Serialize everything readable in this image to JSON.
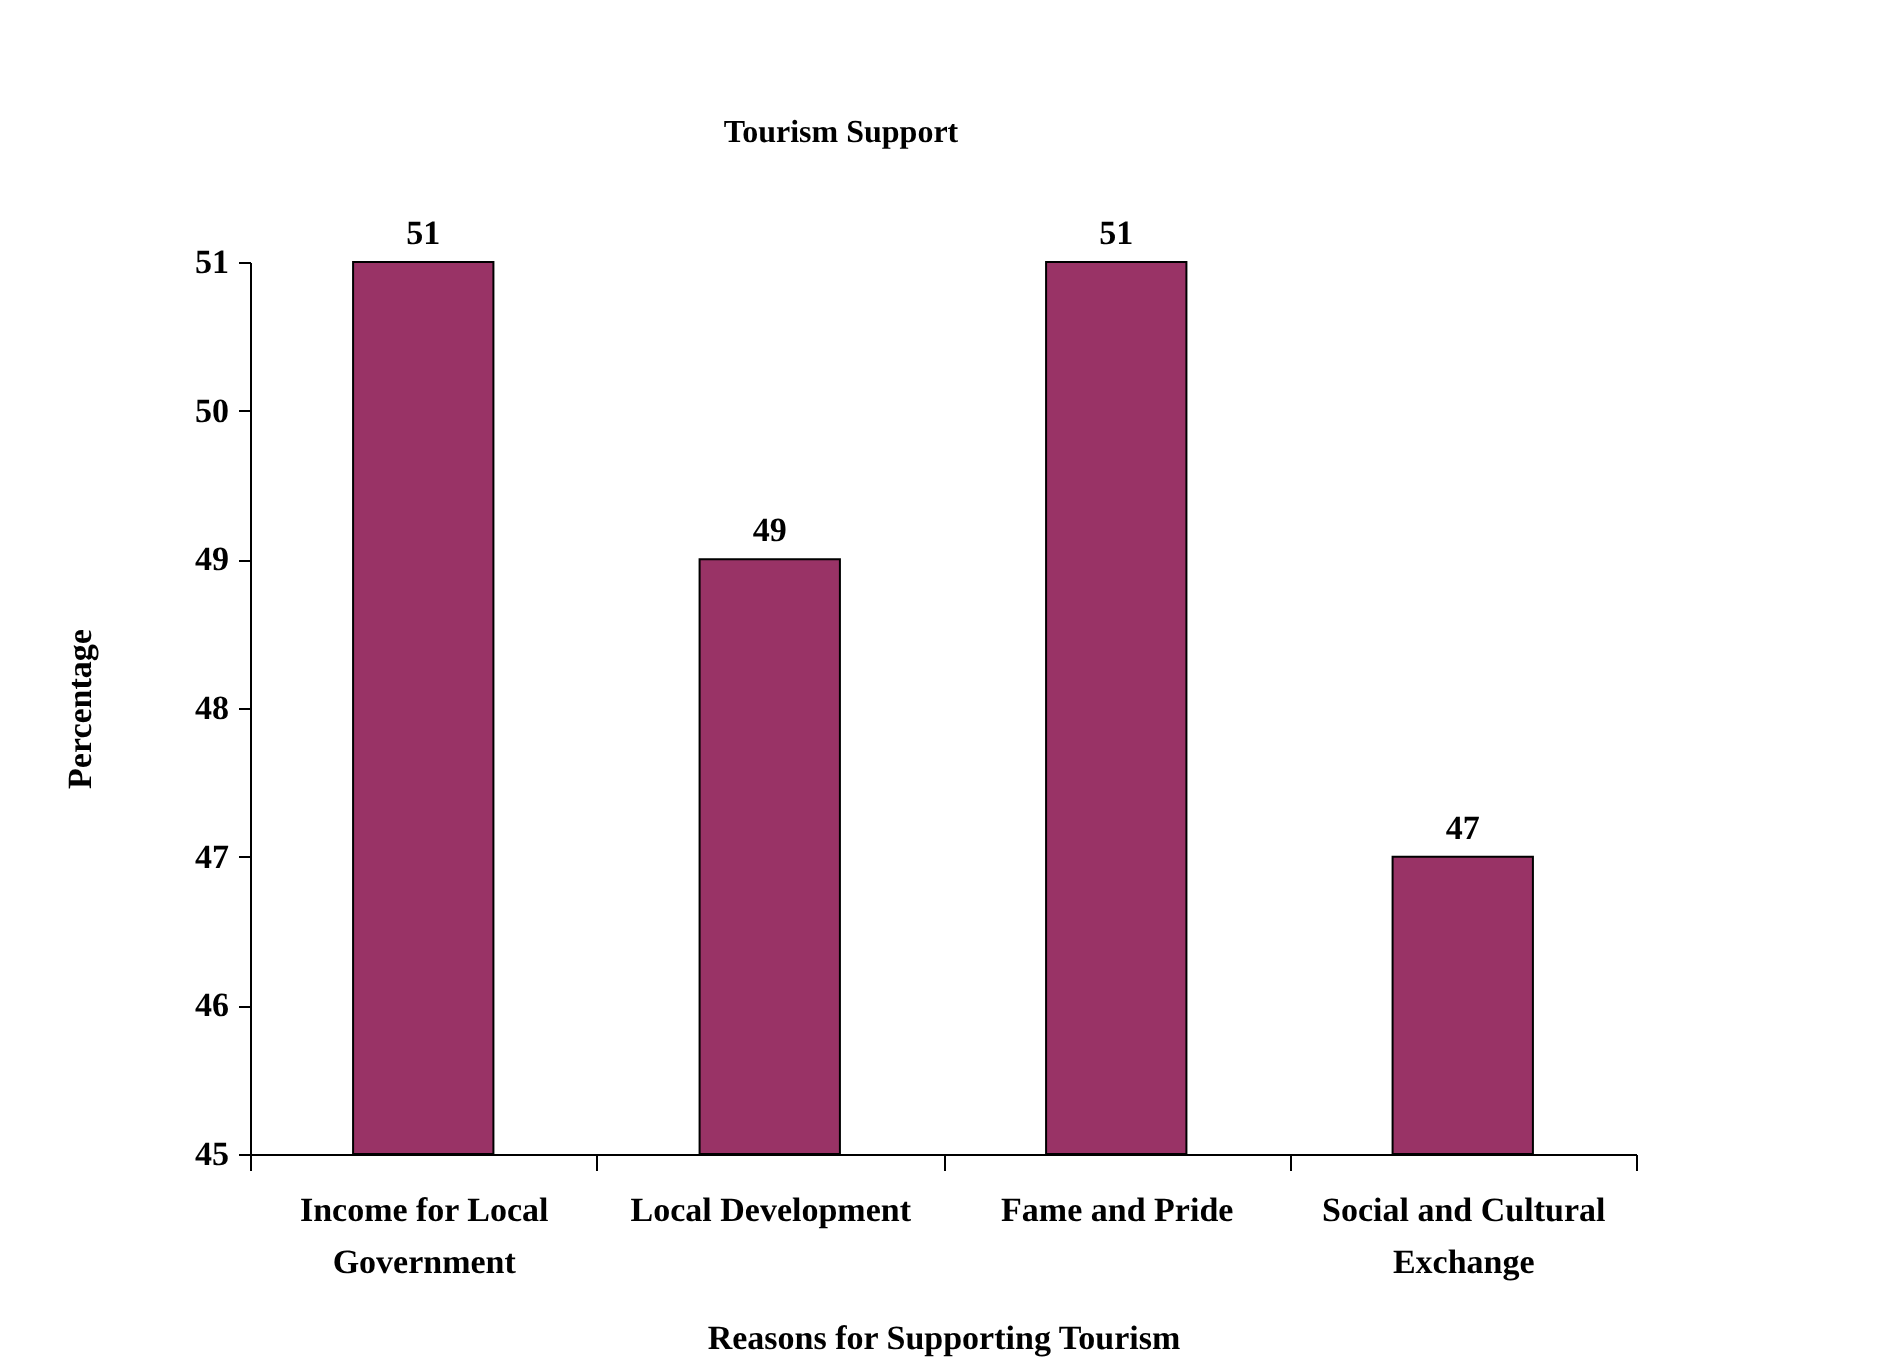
{
  "chart_data": {
    "type": "bar",
    "title": "Tourism Support",
    "xlabel": "Reasons for Supporting Tourism",
    "ylabel": "Percentage",
    "categories": [
      "Income for Local Government",
      "Local Development",
      "Fame and Pride",
      "Social and Cultural Exchange"
    ],
    "values": [
      51,
      49,
      51,
      47
    ],
    "color": "#993366",
    "ylim": [
      45,
      51
    ],
    "yticks": [
      45,
      46,
      47,
      48,
      49,
      50,
      51
    ],
    "data_labels": true,
    "grid": false
  }
}
